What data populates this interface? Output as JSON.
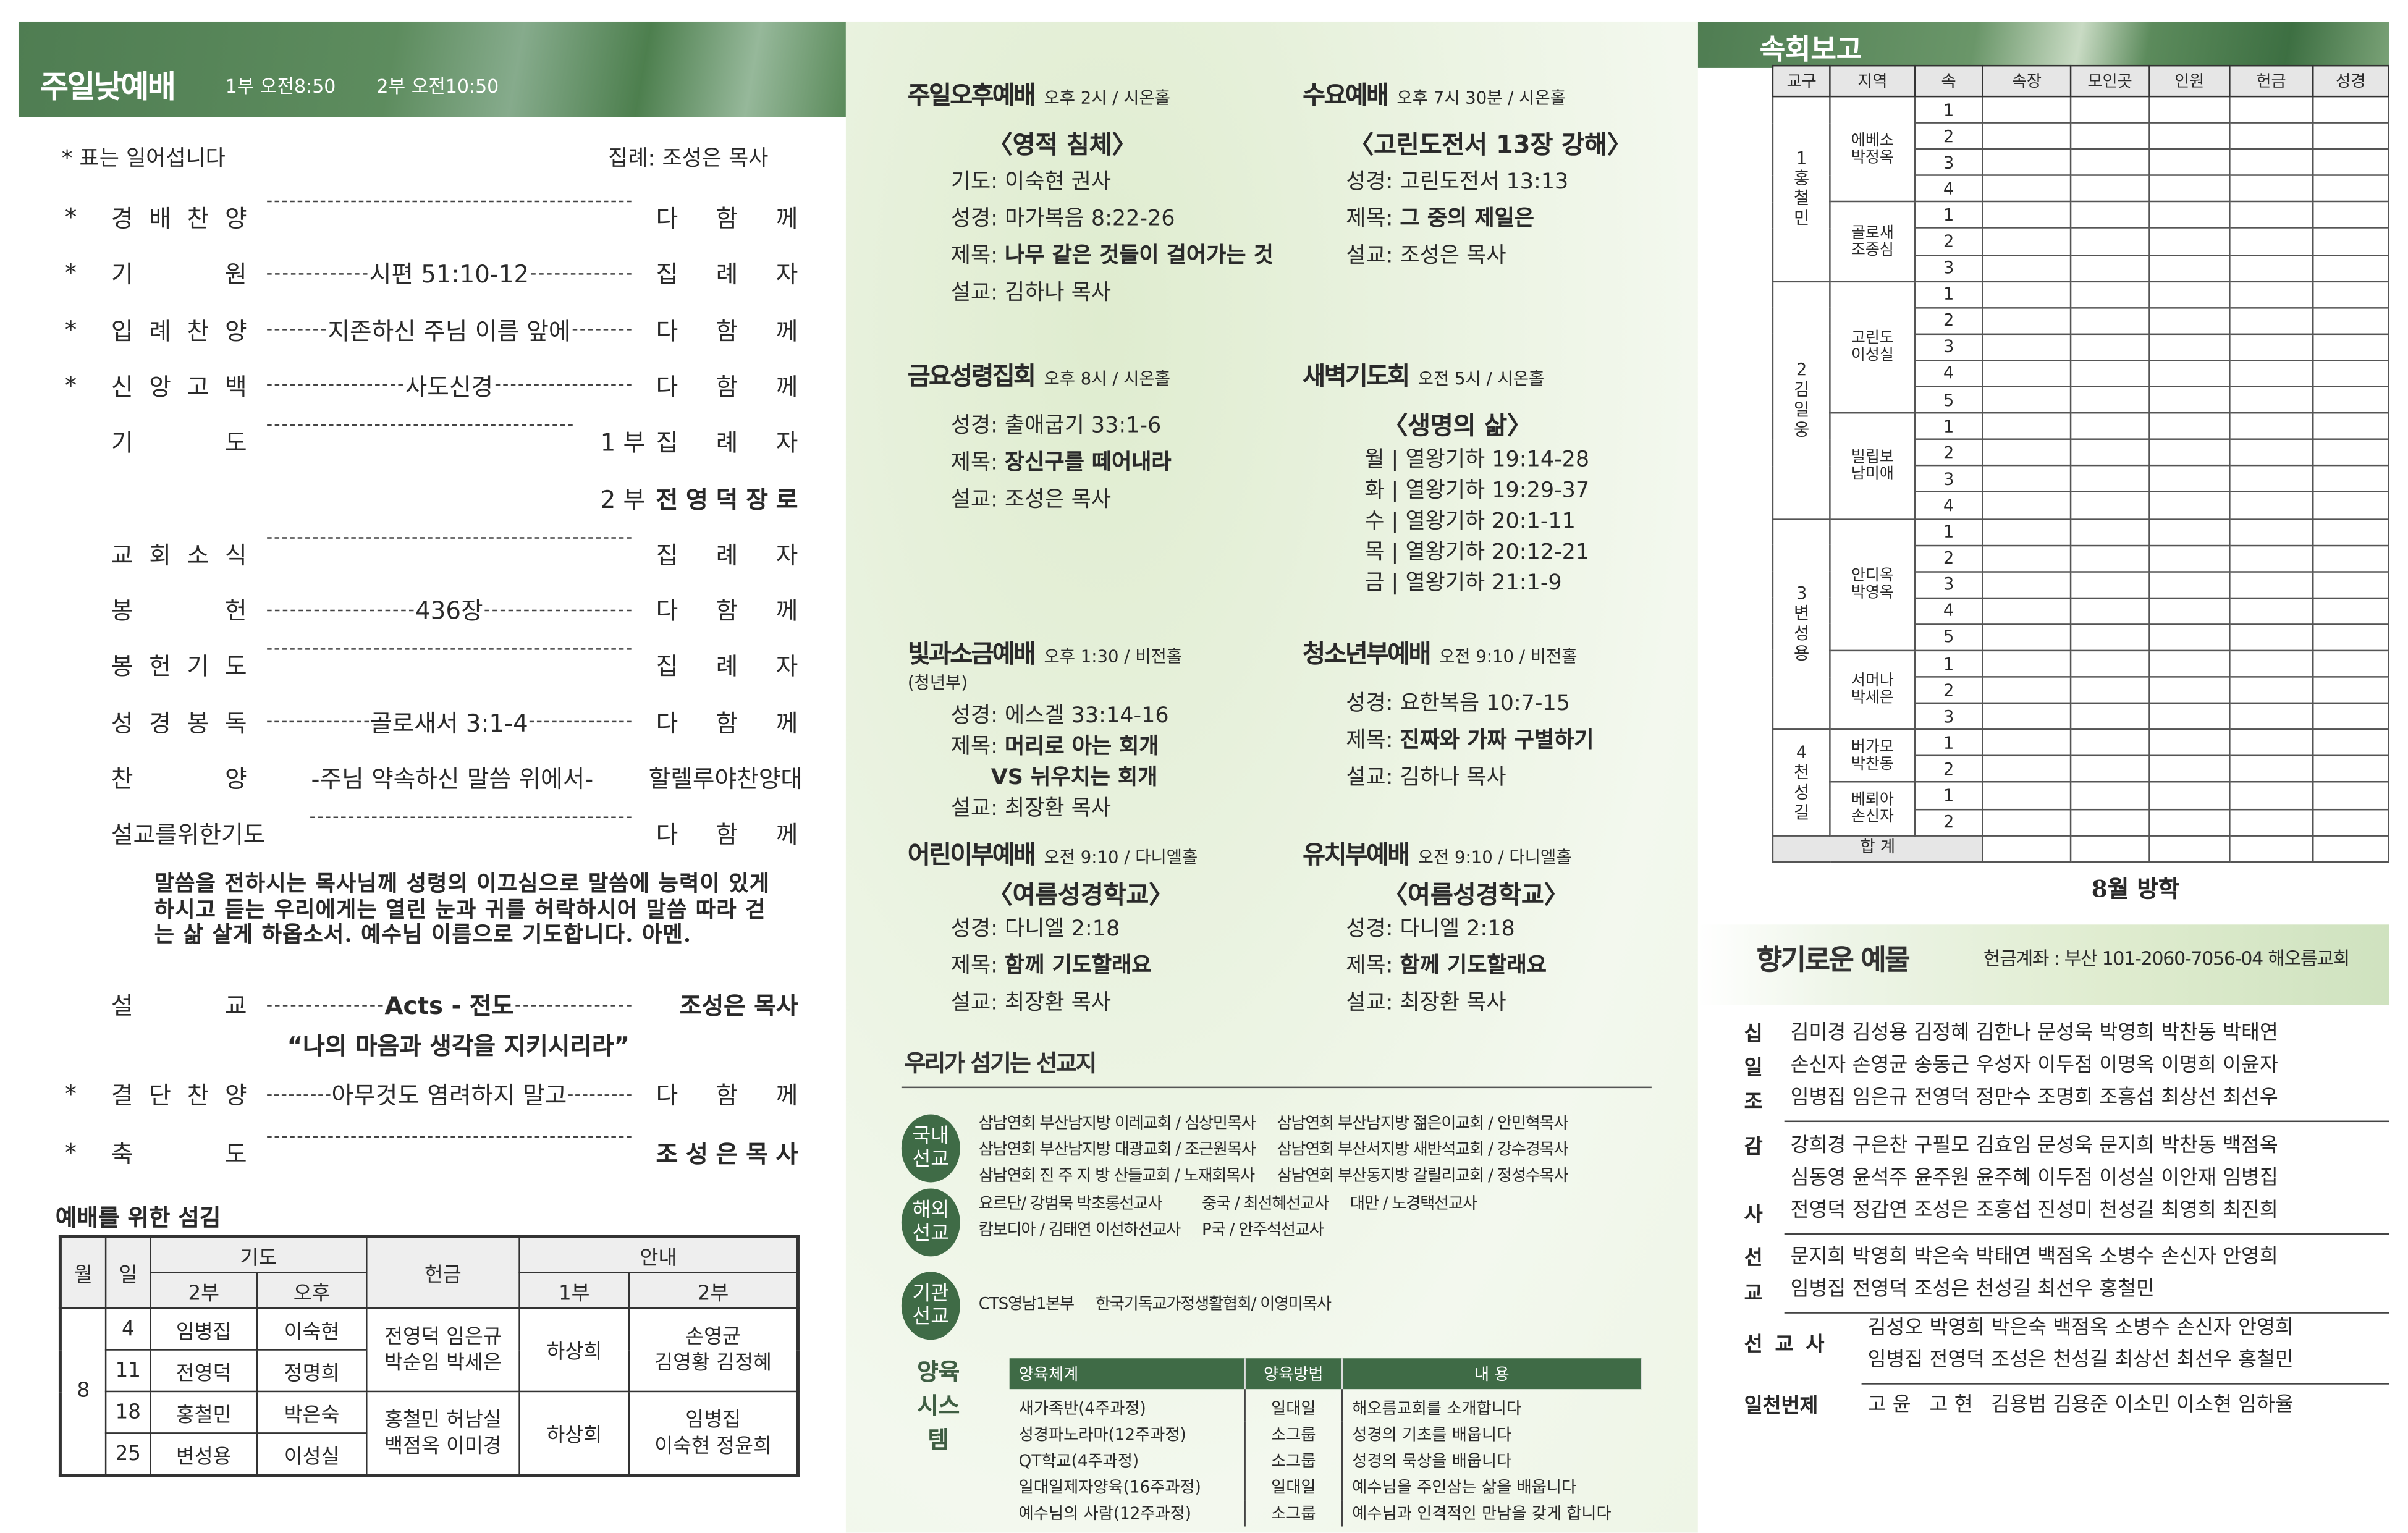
{
  "sunday": {
    "title": "주일낮예배",
    "times": [
      "1부 오전8:50",
      "2부 오전10:50"
    ],
    "note": "* 표는 일어섭니다",
    "leader": "집례: 조성은 목사",
    "order": [
      {
        "star": "*",
        "label": "경배찬양",
        "mid": "",
        "right": "다함께"
      },
      {
        "star": "*",
        "label": "기원",
        "mid": "시편 51:10-12",
        "right": "집례자"
      },
      {
        "star": "*",
        "label": "입례찬양",
        "mid": "지존하신 주님 이름 앞에",
        "right": "다함께"
      },
      {
        "star": "*",
        "label": "신앙고백",
        "mid": "사도신경",
        "right": "다함께"
      },
      {
        "star": "",
        "label": "기도",
        "mid": "",
        "prefix": "1 부",
        "right": "집례자"
      },
      {
        "star": "",
        "label": "",
        "mid": "",
        "prefix": "2 부",
        "right": "전영덕장로",
        "bold": true,
        "nodash": true
      },
      {
        "star": "",
        "label": "교회소식",
        "mid": "",
        "right": "집례자"
      },
      {
        "star": "",
        "label": "봉헌",
        "mid": "436장",
        "right": "다함께"
      },
      {
        "star": "",
        "label": "봉헌기도",
        "mid": "",
        "right": "집례자"
      },
      {
        "star": "",
        "label": "성경봉독",
        "mid": "골로새서 3:1-4",
        "right": "다함께"
      },
      {
        "star": "",
        "label": "찬양",
        "mid": "-주님 약속하신 말씀 위에서-",
        "right": "할렐루야찬양대",
        "nodash": true,
        "wide": true
      },
      {
        "star": "",
        "label": "설교를위한기도",
        "mid": "",
        "right": "다함께",
        "compact": true
      }
    ],
    "prayer": "말씀을 전하시는 목사님께 성령의 이끄심으로 말씀에 능력이 있게 하시고 듣는 우리에게는 열린 눈과 귀를 허락하시어 말씀 따라 걷는 삶 살게 하옵소서. 예수님 이름으로 기도합니다. 아멘.",
    "sermon": {
      "star": "",
      "label": "설교",
      "mid": "Acts - 전도",
      "right": "조성은 목사",
      "bold": true,
      "nospread": true
    },
    "sermon_title": "“나의 마음과 생각을 지키시리라”",
    "order_after": [
      {
        "star": "*",
        "label": "결단찬양",
        "mid": "아무것도 염려하지 말고",
        "right": "다함께"
      },
      {
        "star": "*",
        "label": "축도",
        "mid": "",
        "right": "조성은목사",
        "bold": true
      }
    ]
  },
  "service_duty": {
    "title": "예배를 위한 섬김",
    "headers": {
      "month": "월",
      "day": "일",
      "prayer": "기도",
      "prayer_2": "2부",
      "prayer_pm": "오후",
      "offering": "헌금",
      "usher": "안내",
      "usher_1": "1부",
      "usher_2": "2부"
    },
    "month": "8",
    "rows": [
      {
        "day": "4",
        "prayer_2": "임병집",
        "prayer_pm": "이숙현"
      },
      {
        "day": "11",
        "prayer_2": "전영덕",
        "prayer_pm": "정명희"
      },
      {
        "day": "18",
        "prayer_2": "홍철민",
        "prayer_pm": "박은숙"
      },
      {
        "day": "25",
        "prayer_2": "변성용",
        "prayer_pm": "이성실"
      }
    ],
    "offering": [
      "전영덕 임은규 박순임 박세은",
      "홍철민 허남실 백점옥 이미경"
    ],
    "usher_1": [
      "하상희",
      "하상희"
    ],
    "usher_2": [
      [
        "손영균",
        "김영황 김정혜"
      ],
      [
        "임병집",
        "이숙현 정윤희"
      ]
    ]
  },
  "services": [
    {
      "title": "주일오후예배",
      "meta": "오후 2시 / 시온홀",
      "heading": "〈영적 침체〉",
      "lines": [
        {
          "k": "기도:",
          "v": "이숙현 권사"
        },
        {
          "k": "성경:",
          "v": "마가복음 8:22-26"
        },
        {
          "k": "제목:",
          "v": "나무 같은 것들이 걸어가는 것",
          "b": true
        },
        {
          "k": "설교:",
          "v": "김하나 목사"
        }
      ]
    },
    {
      "title": "수요예배",
      "meta": "오후 7시 30분 / 시온홀",
      "heading": "〈고린도전서 13장 강해〉",
      "lines": [
        {
          "k": "성경:",
          "v": "고린도전서 13:13"
        },
        {
          "k": "제목:",
          "v": "그 중의 제일은",
          "b": true
        },
        {
          "k": "설교:",
          "v": "조성은 목사"
        }
      ]
    },
    {
      "title": "금요성령집회",
      "meta": "오후 8시 / 시온홀",
      "heading": "",
      "lines": [
        {
          "k": "성경:",
          "v": "출애굽기 33:1-6"
        },
        {
          "k": "제목:",
          "v": "장신구를 떼어내라",
          "b": true
        },
        {
          "k": "설교:",
          "v": "조성은 목사"
        }
      ]
    },
    {
      "title": "새벽기도회",
      "meta": "오전 5시 / 시온홀",
      "heading": "〈생명의 삶〉",
      "lines": [
        {
          "k": "월 |",
          "v": "열왕기하 19:14-28"
        },
        {
          "k": "화 |",
          "v": "열왕기하 19:29-37"
        },
        {
          "k": "수 |",
          "v": "열왕기하 20:1-11"
        },
        {
          "k": "목 |",
          "v": "열왕기하 20:12-21"
        },
        {
          "k": "금 |",
          "v": "열왕기하 21:1-9"
        }
      ]
    },
    {
      "title": "빛과소금예배",
      "meta": "오후 1:30 / 비전홀",
      "sub": "(청년부)",
      "heading": "",
      "lines": [
        {
          "k": "성경:",
          "v": "에스겔 33:14-16"
        },
        {
          "k": "제목:",
          "v": "머리로 아는 회개",
          "b": true
        },
        {
          "k": "",
          "v": "VS 뉘우치는 회개",
          "b": true
        },
        {
          "k": "설교:",
          "v": "최장환 목사"
        }
      ]
    },
    {
      "title": "청소년부예배",
      "meta": "오전 9:10 / 비전홀",
      "heading": "",
      "lines": [
        {
          "k": "성경:",
          "v": "요한복음 10:7-15"
        },
        {
          "k": "제목:",
          "v": "진짜와 가짜 구별하기",
          "b": true
        },
        {
          "k": "설교:",
          "v": "김하나 목사"
        }
      ]
    },
    {
      "title": "어린이부예배",
      "meta": "오전 9:10 / 다니엘홀",
      "heading": "〈여름성경학교〉",
      "lines": [
        {
          "k": "성경:",
          "v": "다니엘 2:18"
        },
        {
          "k": "제목:",
          "v": "함께 기도할래요",
          "b": true
        },
        {
          "k": "설교:",
          "v": "최장환 목사"
        }
      ]
    },
    {
      "title": "유치부예배",
      "meta": "오전 9:10 / 다니엘홀",
      "heading": "〈여름성경학교〉",
      "lines": [
        {
          "k": "성경:",
          "v": "다니엘 2:18"
        },
        {
          "k": "제목:",
          "v": "함께 기도할래요",
          "b": true
        },
        {
          "k": "설교:",
          "v": "최장환 목사"
        }
      ]
    }
  ],
  "missions": {
    "title": "우리가 섬기는 선교지",
    "groups": [
      {
        "label": "국내선교",
        "items": [
          "삼남연회 부산남지방 이레교회 / 심상민목사",
          "삼남연회 부산남지방 젊은이교회 / 안민혁목사",
          "삼남연회 부산남지방 대광교회 / 조근원목사",
          "삼남연회 부산서지방 새반석교회 / 강수경목사",
          "삼남연회 진 주 지 방 산들교회 / 노재회목사",
          "삼남연회 부산동지방 갈릴리교회 / 정성수목사"
        ]
      },
      {
        "label": "해외선교",
        "items": [
          "요르단/ 강범묵 박초롱선교사",
          "중국 / 최선혜선교사",
          "대만 / 노경택선교사",
          "캄보디아 / 김태연 이선하선교사",
          "P국 / 안주석선교사"
        ]
      },
      {
        "label": "기관선교",
        "items": [
          "CTS영남1본부",
          "한국기독교가정생활협회/ 이영미목사"
        ]
      }
    ]
  },
  "nurture": {
    "label": "양육 시스템",
    "headers": [
      "양육체계",
      "양육방법",
      "내 용"
    ],
    "rows": [
      [
        "새가족반(4주과정)",
        "일대일",
        "해오름교회를 소개합니다"
      ],
      [
        "성경파노라마(12주과정)",
        "소그룹",
        "성경의 기초를 배웁니다"
      ],
      [
        "QT학교(4주과정)",
        "소그룹",
        "성경의 묵상을 배웁니다"
      ],
      [
        "일대일제자양육(16주과정)",
        "일대일",
        "예수님을 주인삼는 삶을 배웁니다"
      ],
      [
        "예수님의 사람(12주과정)",
        "소그룹",
        "예수님과 인격적인 만남을 갖게 합니다"
      ]
    ]
  },
  "cell_report": {
    "title": "속회보고",
    "headers": [
      "교구",
      "지역",
      "속",
      "속장",
      "모인곳",
      "인원",
      "헌금",
      "성경"
    ],
    "districts": [
      {
        "name": "1 홍철민",
        "areas": [
          {
            "name": "에베소 박정옥",
            "cells": [
              "1",
              "2",
              "3",
              "4"
            ]
          },
          {
            "name": "골로새 조종심",
            "cells": [
              "1",
              "2",
              "3"
            ]
          }
        ]
      },
      {
        "name": "2 김일웅",
        "areas": [
          {
            "name": "고린도 이성실",
            "cells": [
              "1",
              "2",
              "3",
              "4",
              "5"
            ]
          },
          {
            "name": "빌립보 남미애",
            "cells": [
              "1",
              "2",
              "3",
              "4"
            ]
          }
        ]
      },
      {
        "name": "3 변성용",
        "areas": [
          {
            "name": "안디옥 박영옥",
            "cells": [
              "1",
              "2",
              "3",
              "4",
              "5"
            ]
          },
          {
            "name": "서머나 박세은",
            "cells": [
              "1",
              "2",
              "3"
            ]
          }
        ]
      },
      {
        "name": "4 천성길",
        "areas": [
          {
            "name": "버가모 박찬동",
            "cells": [
              "1",
              "2"
            ]
          },
          {
            "name": "베뢰아 손신자",
            "cells": [
              "1",
              "2"
            ]
          }
        ]
      }
    ],
    "total_label": "합 계",
    "note": "8월 방학"
  },
  "offering": {
    "title": "향기로운 예물",
    "account": "헌금계좌 : 부산 101-2060-7056-04 해오름교회",
    "groups": [
      {
        "label": "십일조",
        "vertical": true,
        "lines": [
          [
            "김미경",
            "김성용",
            "김정혜",
            "김한나",
            "문성욱",
            "박영희",
            "박찬동",
            "박태연"
          ],
          [
            "손신자",
            "손영균",
            "송동근",
            "우성자",
            "이두점",
            "이명옥",
            "이명희",
            "이윤자"
          ],
          [
            "임병집",
            "임은규",
            "전영덕",
            "정만수",
            "조명희",
            "조흥섭",
            "최상선",
            "최선우"
          ]
        ]
      },
      {
        "label": "감사",
        "vertical": true,
        "lines": [
          [
            "강희경",
            "구은찬",
            "구필모",
            "김효임",
            "문성욱",
            "문지희",
            "박찬동",
            "백점옥"
          ],
          [
            "심동영",
            "윤석주",
            "윤주원",
            "윤주혜",
            "이두점",
            "이성실",
            "이안재",
            "임병집"
          ],
          [
            "전영덕",
            "정갑연",
            "조성은",
            "조흥섭",
            "진성미",
            "천성길",
            "최영희",
            "최진희"
          ]
        ]
      },
      {
        "label": "선교",
        "vertical": true,
        "lines": [
          [
            "문지희",
            "박영희",
            "박은숙",
            "박태연",
            "백점옥",
            "소병수",
            "손신자",
            "안영희"
          ],
          [
            "임병집",
            "전영덕",
            "조성은",
            "천성길",
            "최선우",
            "홍철민"
          ]
        ]
      },
      {
        "label": "선교사",
        "vertical": false,
        "lines": [
          [
            "김성오",
            "박영희",
            "박은숙",
            "백점옥",
            "소병수",
            "손신자",
            "안영희"
          ],
          [
            "임병집",
            "전영덕",
            "조성은",
            "천성길",
            "최상선",
            "최선우",
            "홍철민"
          ]
        ]
      },
      {
        "label": "일천번제",
        "vertical": false,
        "lines": [
          [
            "고 윤",
            "고 현",
            "김용범",
            "김용준",
            "이소민",
            "이소현",
            "임하율"
          ]
        ]
      }
    ]
  },
  "colors": {
    "green_band": "#4f7d52",
    "mission_circle": "#3f6b46",
    "panel_bg": "#e9f2df"
  }
}
